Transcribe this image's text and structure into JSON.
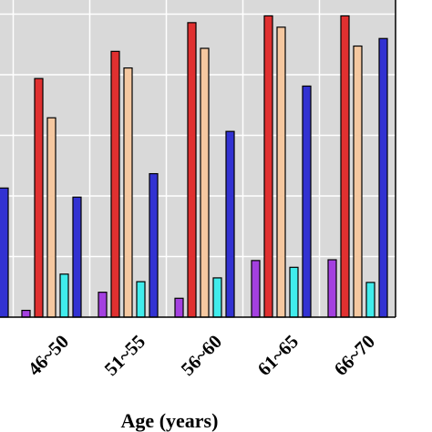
{
  "chart_data": {
    "type": "bar",
    "title": "",
    "xlabel": "Age (years)",
    "ylabel": "",
    "categories": [
      "46~50",
      "51~55",
      "56~60",
      "61~65",
      "66~70"
    ],
    "partial_left_group": {
      "note_values": [
        null,
        null,
        null,
        null,
        null,
        17.1
      ]
    },
    "series": [
      {
        "color": "#a440e0",
        "values": [
          0.9,
          3.3,
          2.5,
          7.5,
          7.6
        ]
      },
      {
        "color": "#e03030",
        "values": [
          31.6,
          35.2,
          39.0,
          39.9,
          39.9
        ]
      },
      {
        "color": "#f5c8a0",
        "values": [
          26.4,
          33.0,
          35.6,
          38.4,
          35.9
        ]
      },
      {
        "color": "#40ecec",
        "values": [
          5.7,
          4.7,
          5.2,
          6.6,
          4.6
        ]
      },
      {
        "color": "#3232d2",
        "values": [
          15.9,
          19.0,
          24.6,
          30.6,
          36.9
        ]
      }
    ],
    "ylim": [
      0,
      42
    ],
    "grid": true,
    "background_color": "#d9d9d9",
    "grid_color": "#ffffff",
    "bar_edge_color": "#000000"
  }
}
